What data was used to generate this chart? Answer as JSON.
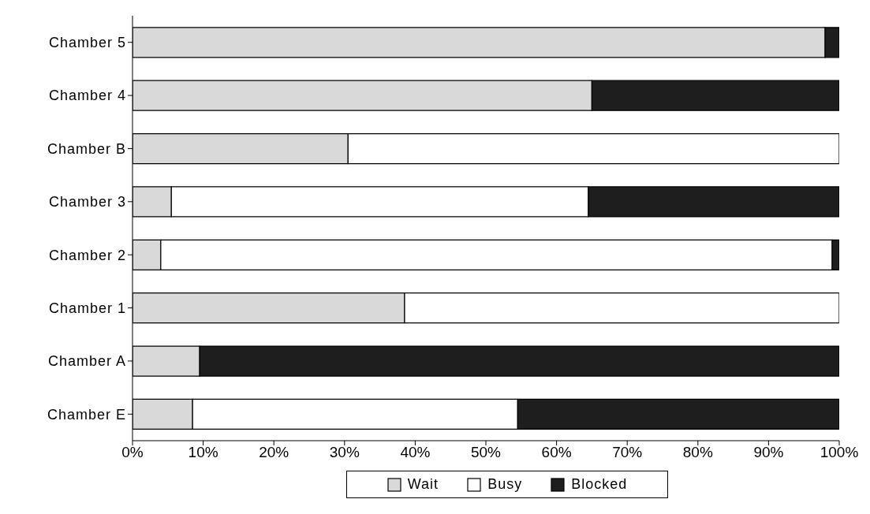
{
  "chart_data": {
    "type": "bar",
    "orientation": "horizontal",
    "stacked": true,
    "categories": [
      "Chamber 5",
      "Chamber 4",
      "Chamber B",
      "Chamber 3",
      "Chamber 2",
      "Chamber 1",
      "Chamber A",
      "Chamber E"
    ],
    "series": [
      {
        "name": "Wait",
        "color": "#d9d9d9",
        "values": [
          98,
          65,
          30.5,
          5.5,
          4,
          38.5,
          9.5,
          8.5
        ]
      },
      {
        "name": "Busy",
        "color": "#ffffff",
        "values": [
          0,
          0,
          69.5,
          59,
          95,
          61.5,
          0,
          46
        ]
      },
      {
        "name": "Blocked",
        "color": "#1e1e1e",
        "values": [
          2,
          35,
          0,
          35.5,
          1,
          0,
          90.5,
          45.5
        ]
      }
    ],
    "xlim": [
      0,
      100
    ],
    "xticks": [
      {
        "value": 0,
        "label": "0%"
      },
      {
        "value": 10,
        "label": "10%"
      },
      {
        "value": 20,
        "label": "20%"
      },
      {
        "value": 30,
        "label": "30%"
      },
      {
        "value": 40,
        "label": "40%"
      },
      {
        "value": 50,
        "label": "50%"
      },
      {
        "value": 60,
        "label": "60%"
      },
      {
        "value": 70,
        "label": "70%"
      },
      {
        "value": 80,
        "label": "80%"
      },
      {
        "value": 90,
        "label": "90%"
      },
      {
        "value": 100,
        "label": "100%"
      }
    ],
    "legend": "bottom",
    "grid": false
  }
}
